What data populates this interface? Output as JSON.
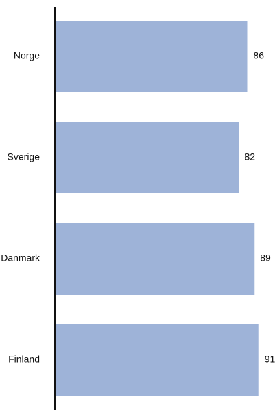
{
  "chart_data": {
    "type": "bar",
    "orientation": "horizontal",
    "categories": [
      "Norge",
      "Sverige",
      "Danmark",
      "Finland"
    ],
    "values": [
      86,
      82,
      89,
      91
    ],
    "data_labels": [
      "86",
      "82",
      "89",
      "91"
    ],
    "title": "",
    "xlabel": "",
    "ylabel": "",
    "xlim": [
      0,
      100
    ],
    "grid": false,
    "legend": "none",
    "bar_color": "#9eb3d8",
    "axis_color": "#111111"
  }
}
